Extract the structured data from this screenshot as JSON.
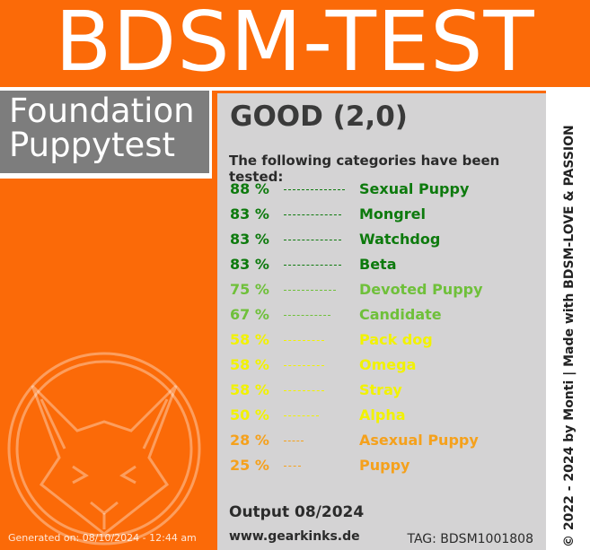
{
  "header": {
    "title": "BDSM-TEST"
  },
  "subtitle": {
    "line1": "Foundation",
    "line2": "Puppytest"
  },
  "result": {
    "label": "GOOD (2,0)"
  },
  "intro_text": "The following categories have been tested:",
  "categories": [
    {
      "percent": "88 %",
      "value": 88,
      "name": "Sexual Puppy",
      "color": "#0d7a0d"
    },
    {
      "percent": "83 %",
      "value": 83,
      "name": "Mongrel",
      "color": "#0d7a0d"
    },
    {
      "percent": "83 %",
      "value": 83,
      "name": "Watchdog",
      "color": "#0d7a0d"
    },
    {
      "percent": "83 %",
      "value": 83,
      "name": "Beta",
      "color": "#0d7a0d"
    },
    {
      "percent": "75 %",
      "value": 75,
      "name": "Devoted Puppy",
      "color": "#6fc03a"
    },
    {
      "percent": "67 %",
      "value": 67,
      "name": "Candidate",
      "color": "#6fc03a"
    },
    {
      "percent": "58 %",
      "value": 58,
      "name": "Pack dog",
      "color": "#f2f200"
    },
    {
      "percent": "58 %",
      "value": 58,
      "name": "Omega",
      "color": "#f2f200"
    },
    {
      "percent": "58 %",
      "value": 58,
      "name": "Stray",
      "color": "#f2f200"
    },
    {
      "percent": "50 %",
      "value": 50,
      "name": "Alpha",
      "color": "#f2f200"
    },
    {
      "percent": "28 %",
      "value": 28,
      "name": "Asexual Puppy",
      "color": "#f5a11c"
    },
    {
      "percent": "25 %",
      "value": 25,
      "name": "Puppy",
      "color": "#f5a11c"
    }
  ],
  "footer": {
    "output": "Output 08/2024",
    "website": "www.gearkinks.de",
    "tag": "TAG: BDSM1001808",
    "generated": "Generated on: 08/10/2024 - 12:44 am",
    "copyright": "© 2022 - 2024 by Monti | Made with BDSM-LOVE & PASSION"
  },
  "colors": {
    "brand_orange": "#fb6a08",
    "panel_gray": "#d4d3d4",
    "subtitle_gray": "#7d7d7d"
  },
  "icons": {
    "logo": "fox-logo-icon"
  }
}
